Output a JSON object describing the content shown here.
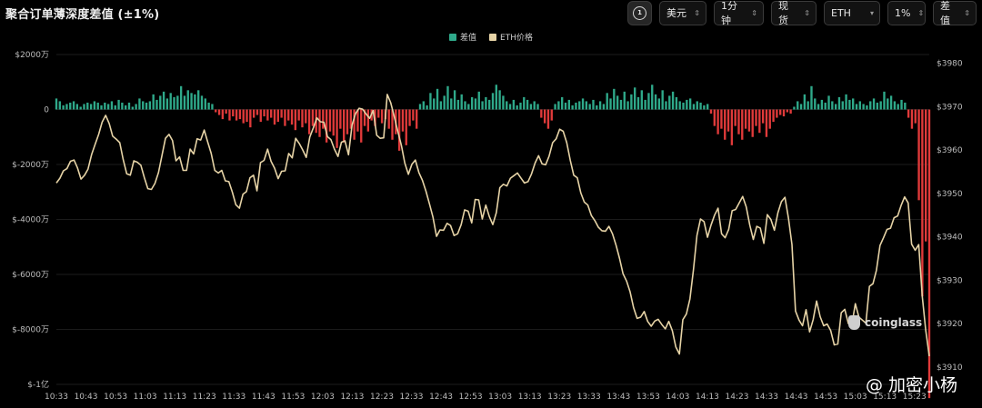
{
  "header": {
    "title": "聚合订单薄深度差值 (±1%)"
  },
  "toolbar": {
    "icon_badge": "1",
    "currency": "美元",
    "interval": "1分钟",
    "market": "现货",
    "coin": "ETH",
    "range": "1%",
    "metric": "差值"
  },
  "watermark": {
    "text": "coinglass"
  },
  "author": {
    "text": "@ 加密小杨"
  },
  "colors": {
    "positive": "#2fa98a",
    "negative": "#e03a3a",
    "price_line": "#e6d3a6",
    "background": "#000000"
  },
  "chart_data": {
    "type": "bar",
    "title": "聚合订单薄深度差值 (±1%)",
    "legend": [
      "差值",
      "ETH价格"
    ],
    "legend_position": "top-center",
    "grid": true,
    "x_ticks": [
      "10:33",
      "10:43",
      "10:53",
      "11:03",
      "11:13",
      "11:23",
      "11:33",
      "11:43",
      "11:53",
      "12:03",
      "12:13",
      "12:23",
      "12:33",
      "12:43",
      "12:53",
      "13:03",
      "13:13",
      "13:23",
      "13:33",
      "13:43",
      "13:53",
      "14:03",
      "14:13",
      "14:23",
      "14:33",
      "14:43",
      "14:53",
      "15:03",
      "15:13",
      "15:23"
    ],
    "y_left_ticks": [
      "$2000万",
      "0",
      "$-2000万",
      "$-4000万",
      "$-6000万",
      "$-8000万",
      "$-1亿"
    ],
    "y_left_range_wan": [
      -10000,
      2000
    ],
    "y_right_ticks": [
      "$3980",
      "$3970",
      "$3960",
      "$3950",
      "$3940",
      "$3930",
      "$3920",
      "$3910"
    ],
    "y_right_range": [
      3906,
      3982
    ],
    "series": [
      {
        "name": "差值",
        "axis": "left",
        "unit": "万美元",
        "x_start": "10:33",
        "x_end": "15:28",
        "values": [
          400,
          300,
          150,
          200,
          250,
          300,
          200,
          100,
          200,
          250,
          200,
          300,
          250,
          150,
          250,
          200,
          300,
          150,
          350,
          250,
          150,
          250,
          100,
          200,
          400,
          300,
          250,
          300,
          550,
          350,
          500,
          650,
          400,
          600,
          450,
          500,
          850,
          500,
          700,
          600,
          550,
          700,
          500,
          400,
          250,
          200,
          -100,
          -200,
          -350,
          -150,
          -400,
          -250,
          -400,
          -350,
          -500,
          -450,
          -650,
          -300,
          -200,
          -450,
          -250,
          -400,
          -300,
          -550,
          -450,
          -300,
          -600,
          -400,
          -550,
          -750,
          -400,
          -650,
          -500,
          -900,
          -600,
          -850,
          -1000,
          -700,
          -1200,
          -800,
          -950,
          -1400,
          -700,
          -1200,
          -900,
          -700,
          -1100,
          -800,
          -1200,
          -600,
          -800,
          -400,
          -600,
          -300,
          -500,
          -350,
          -700,
          -1100,
          -900,
          -1500,
          -800,
          -1300,
          -600,
          -400,
          -700,
          200,
          300,
          150,
          600,
          400,
          750,
          300,
          500,
          850,
          400,
          700,
          350,
          550,
          300,
          200,
          450,
          400,
          650,
          300,
          450,
          350,
          600,
          900,
          700,
          500,
          300,
          200,
          350,
          150,
          250,
          450,
          350,
          200,
          300,
          200,
          -300,
          -500,
          -700,
          -400,
          200,
          300,
          450,
          250,
          350,
          150,
          250,
          300,
          400,
          300,
          200,
          350,
          150,
          300,
          200,
          600,
          400,
          750,
          500,
          350,
          650,
          300,
          550,
          800,
          450,
          700,
          350,
          600,
          900,
          550,
          400,
          700,
          300,
          500,
          650,
          450,
          300,
          250,
          350,
          400,
          200,
          300,
          250,
          150,
          200,
          -150,
          -600,
          -900,
          -700,
          -1100,
          -800,
          -1300,
          -600,
          -900,
          -1100,
          -700,
          -800,
          -1000,
          -600,
          -850,
          -500,
          -1000,
          -700,
          -450,
          -300,
          -200,
          -250,
          -100,
          -150,
          100,
          300,
          200,
          550,
          300,
          850,
          400,
          200,
          350,
          250,
          500,
          300,
          200,
          450,
          300,
          550,
          350,
          400,
          200,
          300,
          200,
          150,
          300,
          400,
          250,
          300,
          650,
          400,
          500,
          300,
          200,
          350,
          250,
          -300,
          -700,
          -500,
          -3300,
          -6800,
          -4800,
          -10500
        ]
      },
      {
        "name": "ETH价格",
        "axis": "right",
        "unit": "USD",
        "x_start": "10:33",
        "x_end": "15:28",
        "values": [
          3952.4,
          3953.5,
          3955.2,
          3955.7,
          3957.4,
          3957.7,
          3955.9,
          3953.3,
          3954.2,
          3955.6,
          3958.9,
          3961.3,
          3963.6,
          3966.4,
          3968,
          3966.1,
          3963.2,
          3962.5,
          3961.7,
          3957.8,
          3954.5,
          3954.2,
          3957.5,
          3957.2,
          3956.5,
          3953.6,
          3951.1,
          3950.9,
          3952.3,
          3954.8,
          3958.7,
          3962.7,
          3963.6,
          3962.2,
          3957.5,
          3958.4,
          3955.3,
          3955.3,
          3960.2,
          3959.1,
          3962.6,
          3962.3,
          3964.6,
          3961.8,
          3959.2,
          3955.3,
          3954.7,
          3955.3,
          3952.9,
          3952.7,
          3950.3,
          3947.4,
          3946.6,
          3949.8,
          3950.4,
          3953.6,
          3954.2,
          3950.6,
          3957.1,
          3957.6,
          3960.2,
          3957.4,
          3955.8,
          3953.4,
          3955.1,
          3955.2,
          3959.2,
          3958.2,
          3962.7,
          3961.5,
          3960,
          3958.3,
          3963,
          3965.1,
          3967.4,
          3966.5,
          3966.4,
          3963.1,
          3962.4,
          3960.2,
          3958.5,
          3961.8,
          3962.1,
          3958.9,
          3965.8,
          3968.4,
          3969.6,
          3969.4,
          3968.3,
          3967.3,
          3969.1,
          3963.4,
          3962.7,
          3962.8,
          3972.8,
          3970.9,
          3967.7,
          3964.3,
          3961.1,
          3957,
          3954.4,
          3956.7,
          3957.7,
          3954.8,
          3953,
          3950.5,
          3947.6,
          3944.5,
          3940.1,
          3941.6,
          3941.5,
          3943.1,
          3942.6,
          3940.3,
          3940.7,
          3942.8,
          3946.2,
          3945.9,
          3943.2,
          3948.6,
          3948.5,
          3944.1,
          3947.3,
          3944.7,
          3942.8,
          3945.6,
          3951.3,
          3952.1,
          3951.7,
          3953.5,
          3954.1,
          3954.7,
          3953.5,
          3952.4,
          3952.7,
          3954.5,
          3957,
          3958.7,
          3956.8,
          3956.6,
          3958.6,
          3961.7,
          3962.6,
          3964.8,
          3964.3,
          3961.7,
          3957.6,
          3954.2,
          3953.6,
          3950.1,
          3948,
          3947.3,
          3944.9,
          3943.7,
          3942.2,
          3941.4,
          3941.3,
          3942.4,
          3940.7,
          3938.1,
          3935,
          3931.5,
          3929.8,
          3927.3,
          3923.7,
          3921.2,
          3921.5,
          3922.8,
          3920.5,
          3919.4,
          3920.6,
          3921,
          3919.8,
          3918.8,
          3920.5,
          3918.4,
          3914.6,
          3913,
          3920.9,
          3922.2,
          3925.7,
          3932.3,
          3940.3,
          3944.1,
          3943.5,
          3939.9,
          3942.7,
          3945,
          3946.6,
          3940.7,
          3939.8,
          3941.7,
          3946,
          3946.3,
          3947.8,
          3949.3,
          3946.9,
          3942.7,
          3939.4,
          3942.4,
          3942,
          3938.5,
          3945.1,
          3944,
          3941.5,
          3945.5,
          3948.1,
          3949.1,
          3944.2,
          3938.2,
          3922.9,
          3920.8,
          3919.5,
          3923.2,
          3918.1,
          3920.9,
          3925.2,
          3921.6,
          3919.5,
          3919.9,
          3918.4,
          3915.1,
          3915.3,
          3922.5,
          3923.3,
          3920,
          3919.7,
          3924.6,
          3921.5,
          3920.8,
          3920.1,
          3928.6,
          3929.2,
          3932.3,
          3938,
          3939.8,
          3941.7,
          3942,
          3944.4,
          3944.8,
          3947.2,
          3949.2,
          3947.8,
          3938.3,
          3936.9,
          3938.2,
          3926.3,
          3918.5,
          3912.5
        ]
      }
    ]
  }
}
